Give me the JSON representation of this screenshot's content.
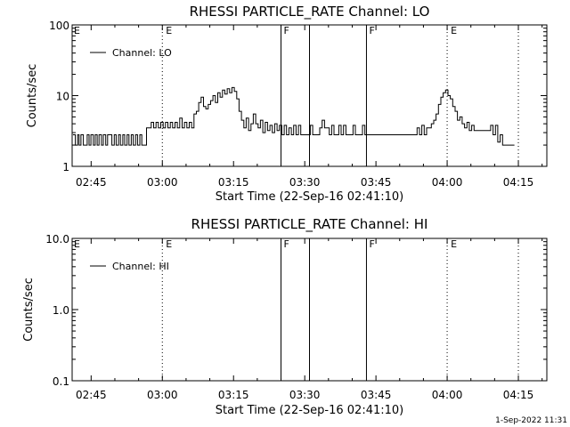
{
  "chart_data": [
    {
      "type": "line",
      "title": "RHESSI PARTICLE_RATE Channel: LO",
      "xlabel": "Start Time (22-Sep-16 02:41:10)",
      "ylabel": "Counts/sec",
      "yscale": "log",
      "ylim": [
        1,
        100
      ],
      "xlim": [
        "02:41",
        "04:21"
      ],
      "x_ticks": [
        "02:45",
        "03:00",
        "03:15",
        "03:30",
        "03:45",
        "04:00",
        "04:15"
      ],
      "y_ticks": [
        "1",
        "10",
        "100"
      ],
      "legend": {
        "position": "top-left",
        "entries": [
          "Channel: LO"
        ]
      },
      "series": [
        {
          "name": "Channel: LO",
          "x_minutes_from_start": [
            0.0,
            0.5,
            1.0,
            1.3,
            1.7,
            2.2,
            2.6,
            3.0,
            3.4,
            3.8,
            4.3,
            4.7,
            5.1,
            5.5,
            6.0,
            6.4,
            6.9,
            7.3,
            7.8,
            8.2,
            8.7,
            9.1,
            9.6,
            10.0,
            10.5,
            10.9,
            11.4,
            11.8,
            12.3,
            12.7,
            13.2,
            13.6,
            14.1,
            14.5,
            15.0,
            15.5,
            16.0,
            16.5,
            17.0,
            17.5,
            18.0,
            18.5,
            19.0,
            19.5,
            20.0,
            20.5,
            21.0,
            21.5,
            22.0,
            22.5,
            23.0,
            23.5,
            24.0,
            24.5,
            25.0,
            25.5,
            26.0,
            26.5,
            27.0,
            27.5,
            28.0,
            28.5,
            29.0,
            29.5,
            30.0,
            30.5,
            31.0,
            31.5,
            32.0,
            32.5,
            33.0,
            33.5,
            34.0,
            34.5,
            35.0,
            35.5,
            36.0,
            36.5,
            37.0,
            37.5,
            38.0,
            38.5,
            39.0,
            39.5,
            40.0,
            40.5,
            41.0,
            41.5,
            42.0,
            42.5,
            43.0,
            43.5,
            44.0,
            44.5,
            45.0,
            45.5,
            46.0,
            46.5,
            47.0,
            47.5,
            48.0,
            48.5,
            49.0,
            49.5,
            50.0,
            50.5,
            51.0,
            51.5,
            52.0,
            52.5,
            53.0,
            53.5,
            54.0,
            54.5,
            55.0,
            55.5,
            56.0,
            56.5,
            57.0,
            57.5,
            58.0,
            58.5,
            59.0,
            59.5,
            60.0,
            60.5,
            61.0,
            61.5,
            62.0,
            62.5,
            63.0,
            63.5,
            64.0,
            64.5,
            65.0,
            65.5,
            66.0,
            66.5,
            67.0,
            67.5,
            68.0,
            68.5,
            69.0,
            69.5,
            70.0,
            70.5,
            71.0,
            71.5,
            72.0,
            72.5,
            73.0,
            73.5,
            74.0,
            74.5,
            75.0,
            75.5,
            76.0,
            76.5,
            77.0,
            77.5,
            78.0,
            78.5,
            79.0,
            79.5,
            80.0,
            80.5,
            81.0,
            81.5,
            82.0,
            82.5,
            83.0,
            83.5,
            84.0,
            84.5,
            85.0,
            85.5,
            86.0,
            86.5,
            87.0,
            87.5,
            88.0,
            88.5,
            89.0,
            89.5,
            90.0,
            90.5,
            91.0,
            91.5,
            92.0,
            92.5,
            93.0
          ],
          "values": [
            2.8,
            2.0,
            2.8,
            2.0,
            2.8,
            2.0,
            2.0,
            2.8,
            2.0,
            2.8,
            2.0,
            2.8,
            2.0,
            2.8,
            2.0,
            2.8,
            2.0,
            2.8,
            2.8,
            2.0,
            2.8,
            2.0,
            2.8,
            2.0,
            2.8,
            2.0,
            2.8,
            2.0,
            2.8,
            2.0,
            2.8,
            2.0,
            2.8,
            2.0,
            2.0,
            3.5,
            3.5,
            4.2,
            3.5,
            4.2,
            3.5,
            4.2,
            3.5,
            4.2,
            3.5,
            4.2,
            3.5,
            4.2,
            3.5,
            4.8,
            3.5,
            4.2,
            3.5,
            4.2,
            3.5,
            5.5,
            6.0,
            8.0,
            9.5,
            7.0,
            6.5,
            7.5,
            8.5,
            10.0,
            8.0,
            11.0,
            9.5,
            12.0,
            10.5,
            12.5,
            11.0,
            13.0,
            11.5,
            9.0,
            6.0,
            4.5,
            3.5,
            4.8,
            3.2,
            4.0,
            5.5,
            4.0,
            3.5,
            4.5,
            3.0,
            4.2,
            3.2,
            3.8,
            3.0,
            4.0,
            3.2,
            3.8,
            2.8,
            3.8,
            2.8,
            3.5,
            2.8,
            3.8,
            2.8,
            3.8,
            2.8,
            2.8,
            2.8,
            2.8,
            3.8,
            2.8,
            2.8,
            2.8,
            3.5,
            4.5,
            3.5,
            3.5,
            2.8,
            3.8,
            2.8,
            2.8,
            3.8,
            2.8,
            3.8,
            2.8,
            2.8,
            2.8,
            3.8,
            2.8,
            2.8,
            2.8,
            3.8,
            2.8,
            2.8,
            2.8,
            2.8,
            2.8,
            2.8,
            2.8,
            2.8,
            2.8,
            2.8,
            2.8,
            2.8,
            2.8,
            2.8,
            2.8,
            2.8,
            2.8,
            2.8,
            2.8,
            2.8,
            2.8,
            2.8,
            3.5,
            2.8,
            3.8,
            2.8,
            3.5,
            3.5,
            4.0,
            4.5,
            5.5,
            7.5,
            9.5,
            11.0,
            12.0,
            10.0,
            9.0,
            7.0,
            6.0,
            4.5,
            5.0,
            4.0,
            3.5,
            4.2,
            3.2,
            3.8,
            3.2,
            3.2,
            3.2,
            3.2,
            3.2,
            3.2,
            3.2,
            3.8,
            2.8,
            3.8,
            2.2,
            2.8,
            2.0,
            2.0,
            2.0,
            2.0,
            2.0,
            2.0,
            2.0,
            2.0,
            2.0,
            2.0,
            2.0,
            2.0,
            2.0
          ]
        }
      ],
      "annotations": [
        {
          "label": "E",
          "type": "dotted",
          "at": "03:00"
        },
        {
          "label": "F",
          "type": "solid",
          "at": "03:25"
        },
        {
          "label": "",
          "type": "solid",
          "at": "03:31"
        },
        {
          "label": "F",
          "type": "solid",
          "at": "03:43"
        },
        {
          "label": "E",
          "type": "dotted",
          "at": "04:00"
        },
        {
          "label": "",
          "type": "dotted",
          "at": "04:15"
        }
      ]
    },
    {
      "type": "line",
      "title": "RHESSI PARTICLE_RATE Channel: HI",
      "xlabel": "Start Time (22-Sep-16 02:41:10)",
      "ylabel": "Counts/sec",
      "yscale": "log",
      "ylim": [
        0.1,
        10.0
      ],
      "xlim": [
        "02:41",
        "04:21"
      ],
      "x_ticks": [
        "02:45",
        "03:00",
        "03:15",
        "03:30",
        "03:45",
        "04:00",
        "04:15"
      ],
      "y_ticks": [
        "0.1",
        "1.0",
        "10.0"
      ],
      "legend": {
        "position": "top-left",
        "entries": [
          "Channel: HI"
        ]
      },
      "series": [
        {
          "name": "Channel: HI",
          "x_minutes_from_start": [],
          "values": []
        }
      ],
      "annotations": [
        {
          "label": "E",
          "type": "dotted",
          "at": "03:00"
        },
        {
          "label": "F",
          "type": "solid",
          "at": "03:25"
        },
        {
          "label": "",
          "type": "solid",
          "at": "03:31"
        },
        {
          "label": "F",
          "type": "solid",
          "at": "03:43"
        },
        {
          "label": "E",
          "type": "dotted",
          "at": "04:00"
        },
        {
          "label": "",
          "type": "dotted",
          "at": "04:15"
        }
      ]
    }
  ],
  "footer": {
    "timestamp": "1-Sep-2022 11:31"
  }
}
